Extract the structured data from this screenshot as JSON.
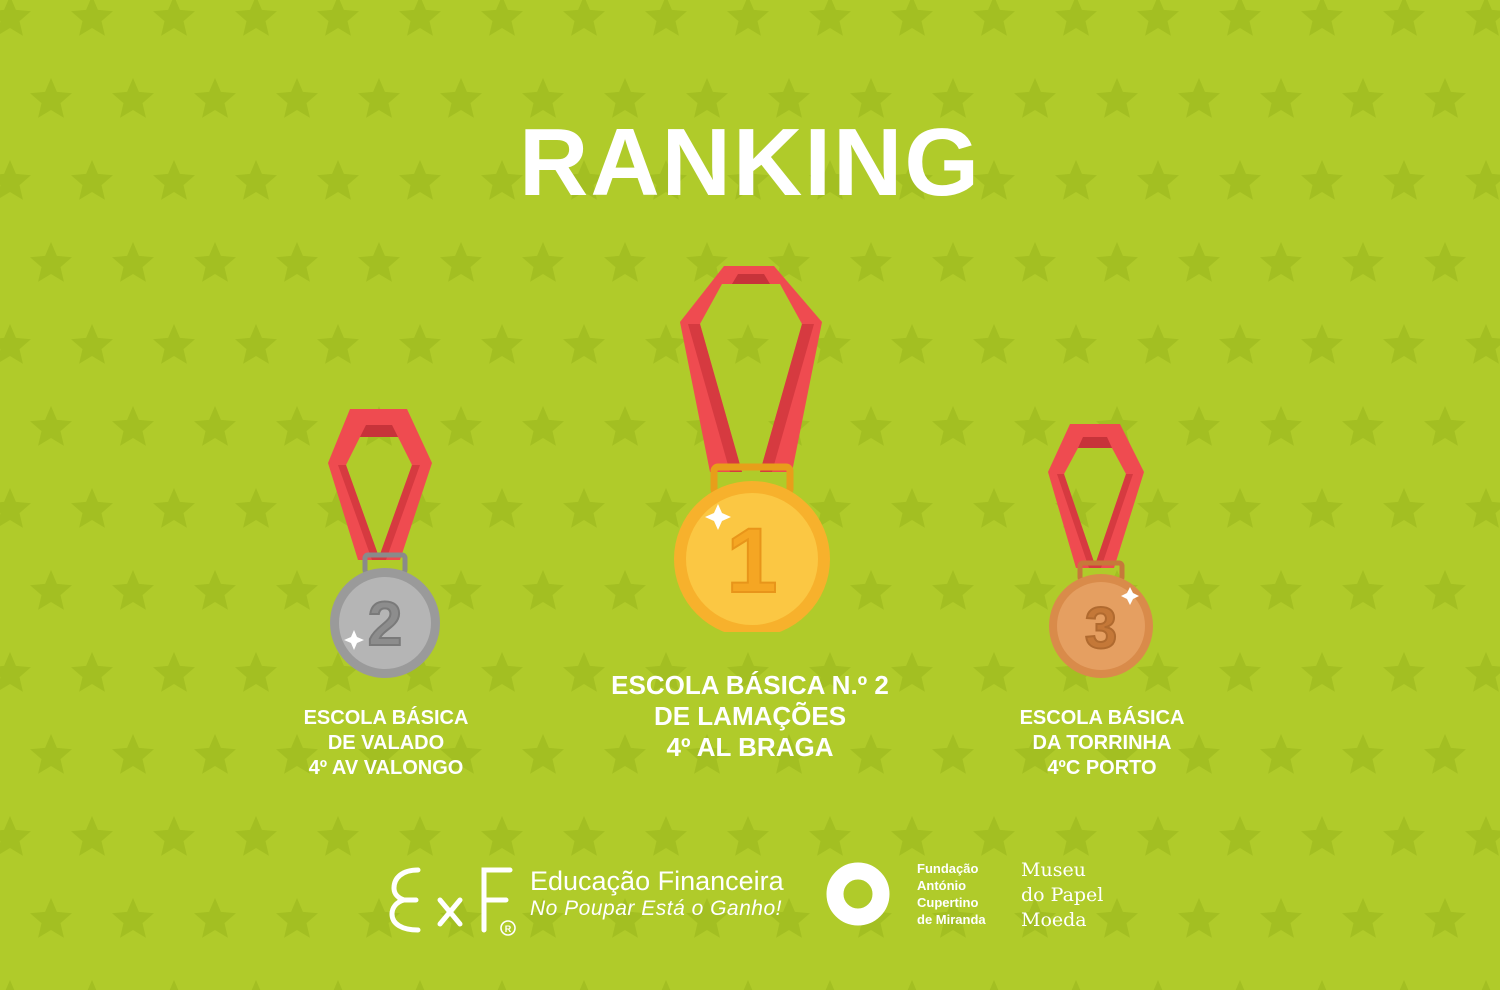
{
  "title": "RANKING",
  "colors": {
    "background": "#b0cb2a",
    "star": "#a3bf22",
    "ribbon": "#ef4b50",
    "ribbon_dark": "#d63a40",
    "gold": "#f7b12c",
    "silver": "#a8a8a8",
    "bronze": "#d98b4a"
  },
  "podium": [
    {
      "place": "1",
      "medal": "gold",
      "lines": [
        "ESCOLA BÁSICA N.º 2",
        "DE LAMAÇÕES",
        "4º AL BRAGA"
      ]
    },
    {
      "place": "2",
      "medal": "silver",
      "lines": [
        "ESCOLA BÁSICA",
        "DE VALADO",
        "4º AV VALONGO"
      ]
    },
    {
      "place": "3",
      "medal": "bronze",
      "lines": [
        "ESCOLA BÁSICA",
        "DA TORRINHA",
        "4ºC PORTO"
      ]
    }
  ],
  "footer": {
    "exf": {
      "logo_text": "ExF",
      "registered": "®",
      "line1": "Educação Financeira",
      "line2": "No Poupar Está o Ganho!"
    },
    "fundacao": {
      "lines": [
        "Fundação",
        "António",
        "Cupertino",
        "de Miranda"
      ]
    },
    "museu": {
      "lines": [
        "Museu",
        "do Papel",
        "Moeda"
      ]
    }
  }
}
